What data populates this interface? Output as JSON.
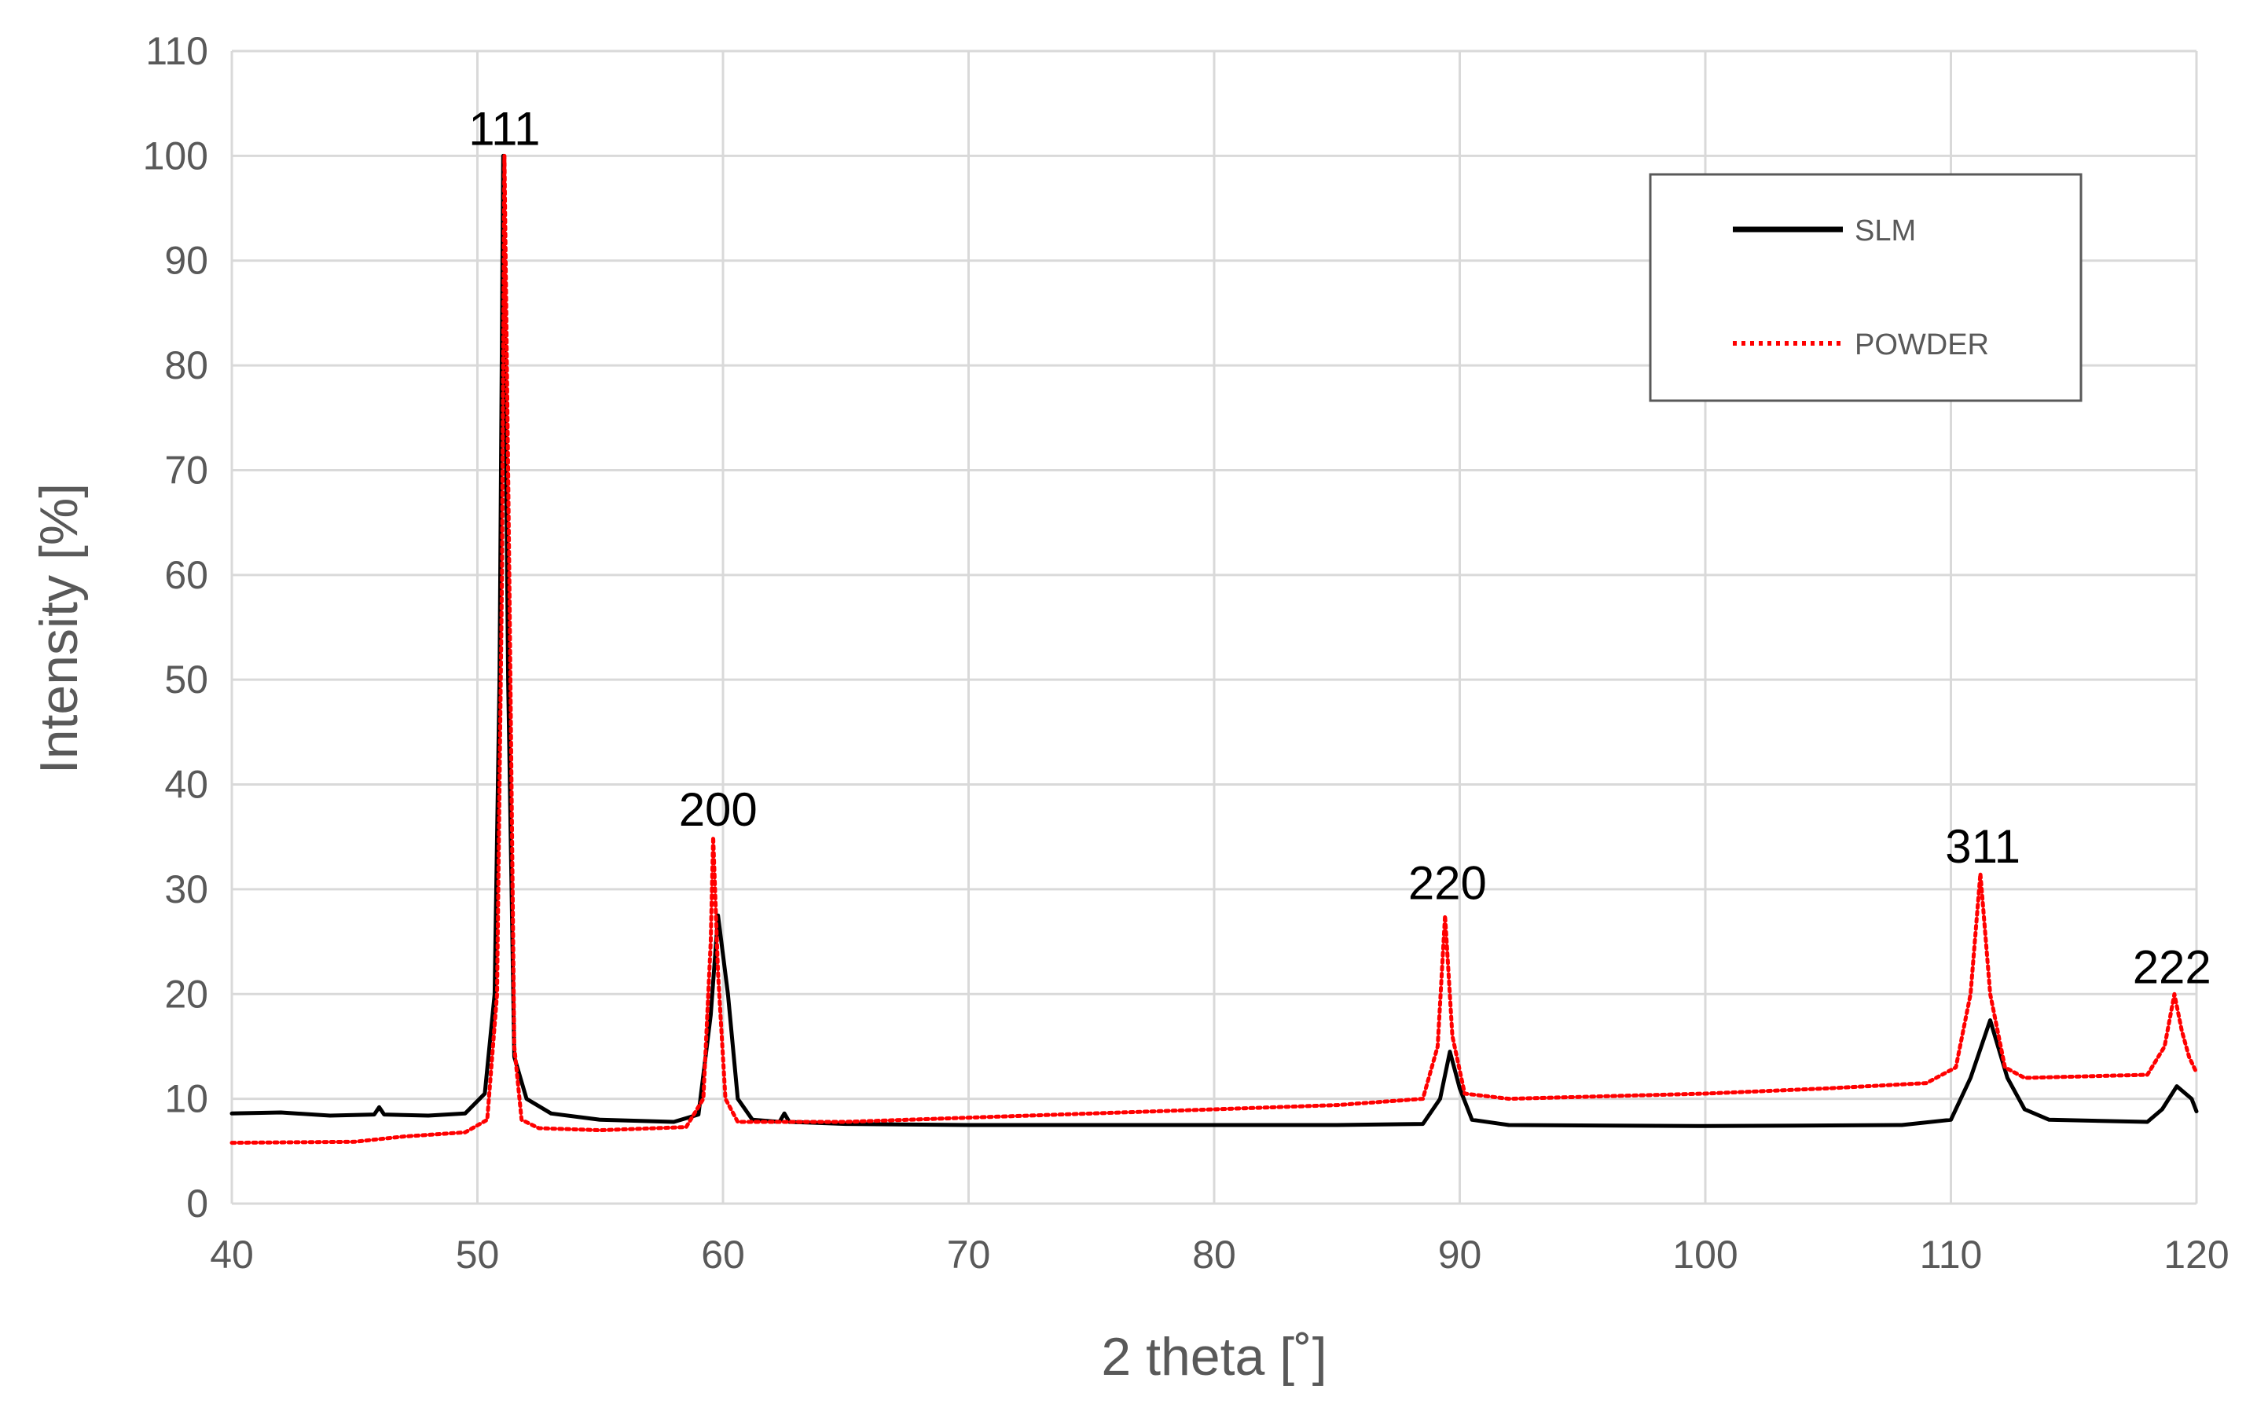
{
  "chart_data": {
    "type": "line",
    "xlabel": "2 theta [˚]",
    "ylabel": "Intensity [%]",
    "xlim": [
      40,
      120
    ],
    "ylim": [
      0,
      110
    ],
    "xticks": [
      40,
      50,
      60,
      70,
      80,
      90,
      100,
      110,
      120
    ],
    "yticks": [
      0,
      10,
      20,
      30,
      40,
      50,
      60,
      70,
      80,
      90,
      100,
      110
    ],
    "grid": true,
    "legend": "top-right",
    "series": [
      {
        "name": "SLM",
        "color": "#000000",
        "style": "solid",
        "points": [
          [
            40,
            8.6
          ],
          [
            42,
            8.7
          ],
          [
            44,
            8.4
          ],
          [
            45.8,
            8.5
          ],
          [
            46,
            9.2
          ],
          [
            46.2,
            8.5
          ],
          [
            48,
            8.4
          ],
          [
            49.5,
            8.6
          ],
          [
            50.3,
            10.5
          ],
          [
            50.7,
            20
          ],
          [
            50.9,
            50
          ],
          [
            51.05,
            100
          ],
          [
            51.25,
            50
          ],
          [
            51.5,
            14
          ],
          [
            52,
            10
          ],
          [
            53,
            8.6
          ],
          [
            55,
            8
          ],
          [
            58,
            7.8
          ],
          [
            59,
            8.5
          ],
          [
            59.5,
            18
          ],
          [
            59.8,
            27.5
          ],
          [
            60.2,
            20
          ],
          [
            60.6,
            10
          ],
          [
            61.2,
            8
          ],
          [
            62.3,
            7.8
          ],
          [
            62.5,
            8.6
          ],
          [
            62.7,
            7.8
          ],
          [
            65,
            7.6
          ],
          [
            70,
            7.5
          ],
          [
            75,
            7.5
          ],
          [
            80,
            7.5
          ],
          [
            85,
            7.5
          ],
          [
            88.5,
            7.6
          ],
          [
            89.2,
            10
          ],
          [
            89.6,
            14.5
          ],
          [
            90,
            11
          ],
          [
            90.5,
            8
          ],
          [
            92,
            7.5
          ],
          [
            100,
            7.4
          ],
          [
            108,
            7.5
          ],
          [
            110,
            8
          ],
          [
            110.8,
            12
          ],
          [
            111.6,
            17.5
          ],
          [
            112.3,
            12
          ],
          [
            113,
            9
          ],
          [
            114,
            8
          ],
          [
            118,
            7.8
          ],
          [
            118.6,
            9
          ],
          [
            119.2,
            11.2
          ],
          [
            119.8,
            10
          ],
          [
            120,
            8.8
          ]
        ]
      },
      {
        "name": "POWDER",
        "color": "#ff0000",
        "style": "dotted",
        "points": [
          [
            40,
            5.8
          ],
          [
            45,
            5.9
          ],
          [
            47,
            6.4
          ],
          [
            49.5,
            6.8
          ],
          [
            50.4,
            8
          ],
          [
            50.8,
            20
          ],
          [
            51.0,
            60
          ],
          [
            51.1,
            100
          ],
          [
            51.3,
            60
          ],
          [
            51.5,
            15
          ],
          [
            51.8,
            8
          ],
          [
            52.5,
            7.2
          ],
          [
            55,
            7
          ],
          [
            58.5,
            7.3
          ],
          [
            59.2,
            10
          ],
          [
            59.5,
            25
          ],
          [
            59.6,
            35
          ],
          [
            59.8,
            22
          ],
          [
            60.1,
            10
          ],
          [
            60.6,
            7.8
          ],
          [
            65,
            7.8
          ],
          [
            70,
            8.2
          ],
          [
            75,
            8.6
          ],
          [
            80,
            9
          ],
          [
            85,
            9.4
          ],
          [
            88.5,
            10
          ],
          [
            89.1,
            15
          ],
          [
            89.4,
            27.5
          ],
          [
            89.7,
            16
          ],
          [
            90.2,
            10.5
          ],
          [
            92,
            10
          ],
          [
            100,
            10.5
          ],
          [
            105,
            11
          ],
          [
            109,
            11.5
          ],
          [
            110.2,
            13
          ],
          [
            110.8,
            20
          ],
          [
            111.2,
            31.5
          ],
          [
            111.6,
            20
          ],
          [
            112.2,
            13
          ],
          [
            113,
            12
          ],
          [
            118,
            12.3
          ],
          [
            118.7,
            15
          ],
          [
            119.1,
            20
          ],
          [
            119.4,
            16.5
          ],
          [
            119.7,
            14
          ],
          [
            120,
            12.5
          ]
        ]
      }
    ],
    "annotations": [
      {
        "text": "111",
        "x": 51.1,
        "y": 100
      },
      {
        "text": "200",
        "x": 59.8,
        "y": 35
      },
      {
        "text": "220",
        "x": 89.5,
        "y": 28
      },
      {
        "text": "311",
        "x": 111.3,
        "y": 31.5
      },
      {
        "text": "222",
        "x": 119,
        "y": 20
      }
    ]
  }
}
